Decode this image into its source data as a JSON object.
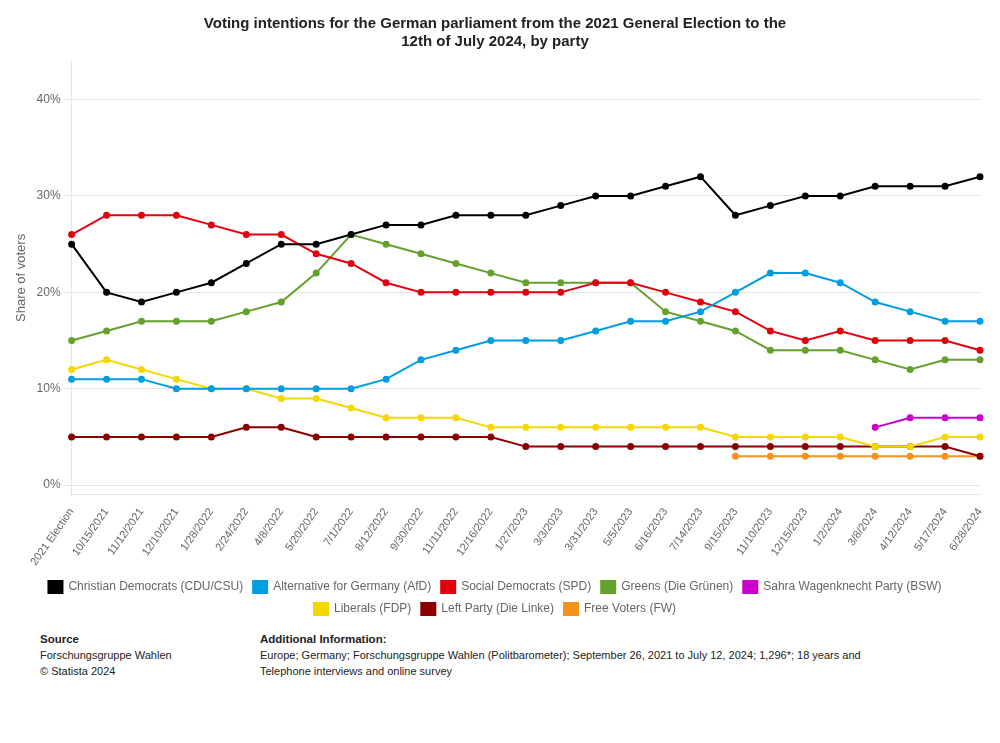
{
  "chart_data": {
    "type": "line",
    "title": "Voting intentions for the German parliament from the 2021 General Election to the\n12th of July 2024, by party",
    "y_label": "Share of voters",
    "categories": [
      "2021 Election",
      "10/15/2021",
      "11/12/2021",
      "12/10/2021",
      "1/28/2022",
      "2/24/2022",
      "4/8/2022",
      "5/20/2022",
      "7/1/2022",
      "8/12/2022",
      "9/30/2022",
      "11/11/2022",
      "12/16/2022",
      "1/27/2023",
      "3/3/2023",
      "3/31/2023",
      "5/5/2023",
      "6/16/2023",
      "7/14/2023",
      "9/15/2023",
      "11/10/2023",
      "12/15/2023",
      "1/2/2024",
      "3/8/2024",
      "4/12/2024",
      "5/17/2024",
      "6/28/2024"
    ],
    "series": [
      {
        "name": "Christian Democrats (CDU/CSU)",
        "color": "#000000",
        "values": [
          25,
          20,
          19,
          20,
          21,
          23,
          25,
          25,
          26,
          27,
          27,
          28,
          28,
          28,
          29,
          30,
          30,
          31,
          32,
          28,
          29,
          30,
          30,
          31,
          31,
          31,
          32
        ]
      },
      {
        "name": "Alternative for Germany (AfD)",
        "color": "#009ee0",
        "values": [
          11,
          11,
          11,
          10,
          10,
          10,
          10,
          10,
          10,
          11,
          13,
          14,
          15,
          15,
          15,
          16,
          17,
          17,
          18,
          20,
          22,
          22,
          21,
          19,
          18,
          17,
          17
        ]
      },
      {
        "name": "Social Democrats (SPD)",
        "color": "#e3000f",
        "values": [
          26,
          28,
          28,
          28,
          27,
          26,
          26,
          24,
          23,
          21,
          20,
          20,
          20,
          20,
          20,
          21,
          21,
          20,
          19,
          18,
          16,
          15,
          16,
          15,
          15,
          15,
          14
        ]
      },
      {
        "name": "Greens (Die Grünen)",
        "color": "#64a12d",
        "values": [
          15,
          16,
          17,
          17,
          17,
          18,
          19,
          22,
          26,
          25,
          24,
          23,
          22,
          21,
          21,
          21,
          21,
          18,
          17,
          16,
          14,
          14,
          14,
          13,
          12,
          13,
          13
        ]
      },
      {
        "name": "Sahra Wagenknecht Party (BSW)",
        "color": "#cc00cc",
        "values": [
          null,
          null,
          null,
          null,
          null,
          null,
          null,
          null,
          null,
          null,
          null,
          null,
          null,
          null,
          null,
          null,
          null,
          null,
          null,
          null,
          null,
          null,
          null,
          6,
          7,
          7,
          7
        ]
      },
      {
        "name": "Liberals (FDP)",
        "color": "#f5d800",
        "values": [
          12,
          13,
          12,
          11,
          10,
          10,
          9,
          9,
          8,
          7,
          7,
          7,
          6,
          6,
          6,
          6,
          6,
          6,
          6,
          5,
          5,
          5,
          5,
          4,
          4,
          5,
          5
        ]
      },
      {
        "name": "Left Party (Die Linke)",
        "color": "#8b0000",
        "values": [
          5,
          5,
          5,
          5,
          5,
          6,
          6,
          5,
          5,
          5,
          5,
          5,
          5,
          4,
          4,
          4,
          4,
          4,
          4,
          4,
          4,
          4,
          4,
          4,
          4,
          4,
          3
        ]
      },
      {
        "name": "Free Voters (FW)",
        "color": "#f5921e",
        "values": [
          null,
          null,
          null,
          null,
          null,
          null,
          null,
          null,
          null,
          null,
          null,
          null,
          null,
          null,
          null,
          null,
          null,
          null,
          null,
          3,
          3,
          3,
          3,
          3,
          3,
          3,
          3
        ]
      }
    ],
    "ylim": [
      -1,
      44
    ],
    "yticks": [
      {
        "value": 0,
        "label": "0%"
      },
      {
        "value": 10,
        "label": "10%"
      },
      {
        "value": 20,
        "label": "20%"
      },
      {
        "value": 30,
        "label": "30%"
      },
      {
        "value": 40,
        "label": "40%"
      }
    ],
    "grid": true,
    "legend": "bottom",
    "marker": "circle",
    "line_style": "solid",
    "source_label": "Source",
    "source_name": "Forschungsgruppe Wahlen",
    "source_copy": "© Statista 2024",
    "add_info_label": "Additional Information:",
    "add_info_body": "Europe; Germany; Forschungsgruppe Wahlen (Politbarometer); September 26, 2021 to July 12, 2024; 1,296*; 18 years and\nTelephone interviews and online survey"
  }
}
